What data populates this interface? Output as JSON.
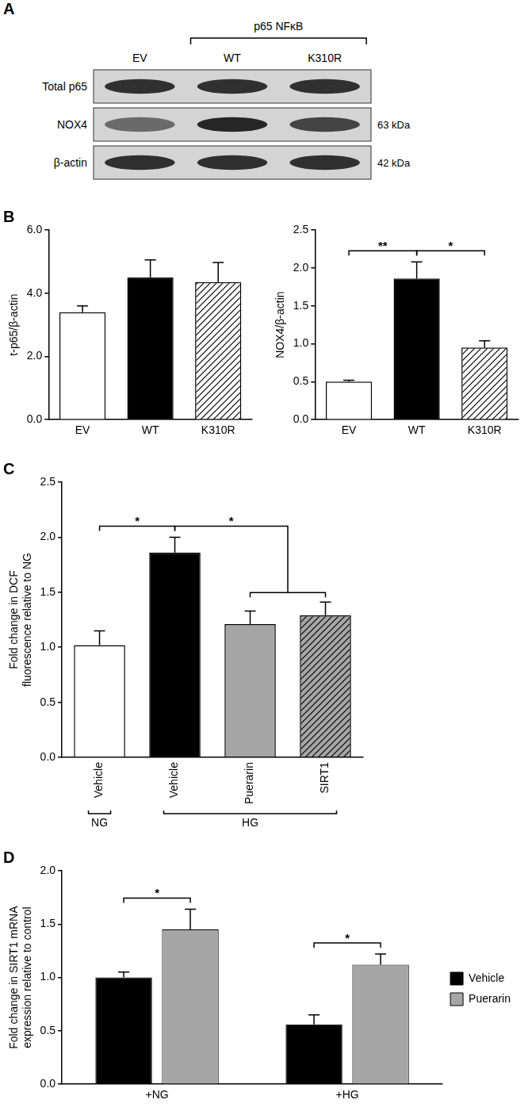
{
  "blot": {
    "panel": "A",
    "lanes": [
      "EV",
      "WT",
      "K310R"
    ],
    "group": {
      "label": "p65 NFκB",
      "lanes": [
        "WT",
        "K310R"
      ]
    },
    "rows": [
      {
        "label": "Total p65"
      },
      {
        "label": "NOX4",
        "size": "63 kDa"
      },
      {
        "label": "β-actin",
        "size": "42 kDa"
      }
    ]
  },
  "chart_data": [
    {
      "type": "bar",
      "panel": "B",
      "y_label": [
        "t-p65/β-actin"
      ],
      "categories": [
        "EV",
        "WT",
        "K310R"
      ],
      "values": [
        3.4,
        4.5,
        4.35
      ],
      "errors": [
        0.2,
        0.55,
        0.62
      ],
      "colors": [
        "#ffffff",
        "#000000",
        "#ffffff"
      ],
      "marker": [
        "solid",
        "solid",
        "hatch"
      ],
      "ylim": [
        0,
        6
      ],
      "yticks": [
        {
          "value": 0,
          "label": "0.0"
        },
        {
          "value": 2,
          "label": "2.0"
        },
        {
          "value": 4,
          "label": "4.0"
        },
        {
          "value": 6,
          "label": "6.0"
        }
      ],
      "grid": false
    },
    {
      "type": "bar",
      "y_label": [
        "NOX4/β-actin"
      ],
      "categories": [
        "EV",
        "WT",
        "K310R"
      ],
      "values": [
        0.5,
        1.86,
        0.95
      ],
      "errors": [
        0.02,
        0.22,
        0.09
      ],
      "colors": [
        "#ffffff",
        "#000000",
        "#ffffff"
      ],
      "marker": [
        "solid",
        "solid",
        "hatch"
      ],
      "ylim": [
        0,
        2.5
      ],
      "yticks": [
        {
          "value": 0,
          "label": "0.0"
        },
        0.5,
        {
          "value": 1,
          "label": "1.0"
        },
        1.5,
        {
          "value": 2,
          "label": "2.0"
        },
        2.5
      ],
      "grid": false,
      "annotations": [
        {
          "text": "**",
          "from": 0,
          "to": 1
        },
        {
          "text": "*",
          "from": 1,
          "to": 2
        }
      ]
    },
    {
      "type": "bar",
      "panel": "C",
      "y_label": [
        "Fold change in DCF",
        "fluorescence relative to NG"
      ],
      "categories": [
        "Vehicle",
        "Vehicle",
        "Puerarin",
        "SIRT1"
      ],
      "values": [
        1.02,
        1.86,
        1.21,
        1.29
      ],
      "errors": [
        0.13,
        0.14,
        0.12,
        0.12
      ],
      "colors": [
        "#ffffff",
        "#000000",
        "#a6a6a6",
        "#a6a6a6"
      ],
      "marker": [
        "solid",
        "solid",
        "solid",
        "hatch"
      ],
      "groups": [
        {
          "label": "NG",
          "from": 0,
          "to": 0
        },
        {
          "label": "HG",
          "from": 1,
          "to": 3
        }
      ],
      "ylim": [
        0,
        2.5
      ],
      "yticks": [
        {
          "value": 0,
          "label": "0.0"
        },
        0.5,
        {
          "value": 1,
          "label": "1.0"
        },
        1.5,
        {
          "value": 2,
          "label": "2.0"
        },
        2.5
      ],
      "grid": false,
      "annotations": [
        {
          "text": "*",
          "from": 0,
          "to": 1
        },
        {
          "text": "*",
          "from": 1,
          "to": [
            2,
            3
          ]
        }
      ]
    },
    {
      "type": "bar",
      "panel": "D",
      "y_label": [
        "Fold change in SIRT1 mRNA",
        "expression relative to control"
      ],
      "categories": [
        "+NG",
        "+HG"
      ],
      "series": [
        {
          "name": "Vehicle",
          "color": "#000000",
          "values": [
            1.0,
            0.56
          ],
          "errors": [
            0.05,
            0.09
          ]
        },
        {
          "name": "Puerarin",
          "color": "#a6a6a6",
          "values": [
            1.45,
            1.12
          ],
          "errors": [
            0.19,
            0.1
          ]
        }
      ],
      "ylim": [
        0,
        2
      ],
      "yticks": [
        {
          "value": 0,
          "label": "0.0"
        },
        0.5,
        {
          "value": 1,
          "label": "1.0"
        },
        1.5,
        {
          "value": 2,
          "label": "2.0"
        }
      ],
      "grid": false,
      "legend": "right",
      "annotations": [
        {
          "text": "*",
          "category": "+NG",
          "from": "Vehicle",
          "to": "Puerarin"
        },
        {
          "text": "*",
          "category": "+HG",
          "from": "Vehicle",
          "to": "Puerarin"
        }
      ]
    }
  ]
}
